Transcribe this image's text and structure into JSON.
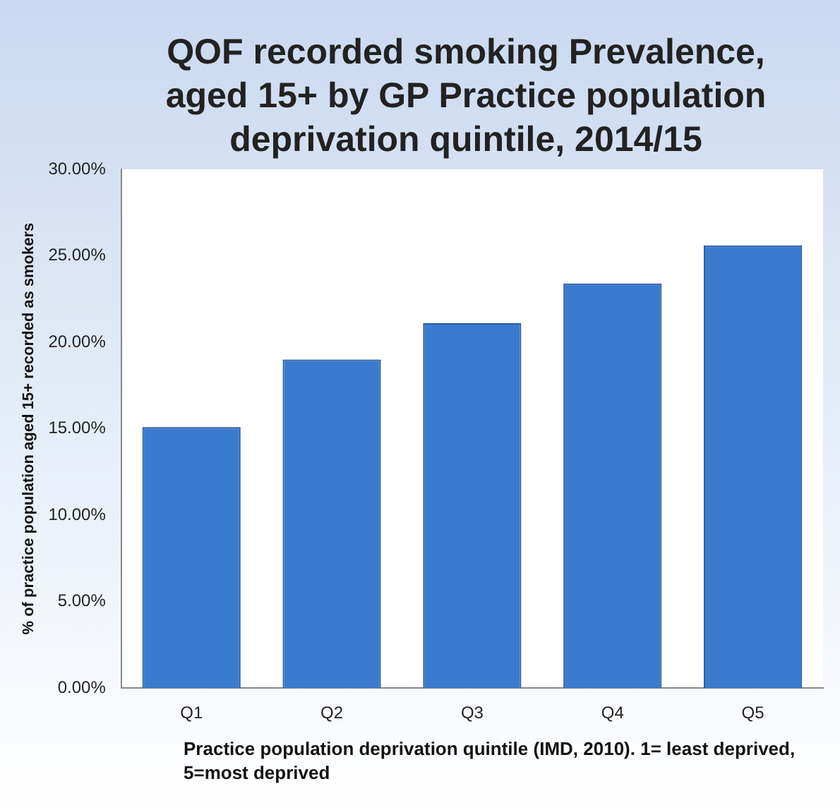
{
  "chart_data": {
    "type": "bar",
    "title": "QOF recorded smoking Prevalence, aged 15+ by GP Practice population deprivation quintile, 2014/15",
    "xlabel": "Practice population deprivation quintile (IMD, 2010). 1= least deprived, 5=most deprived",
    "ylabel": "% of practice population aged 15+ recorded as smokers",
    "categories": [
      "Q1",
      "Q2",
      "Q3",
      "Q4",
      "Q5"
    ],
    "values": [
      15.1,
      19.0,
      21.1,
      23.4,
      25.6
    ],
    "color": "#3b7bcf",
    "ylim": [
      0,
      30
    ],
    "yticks": [
      {
        "value": 0,
        "label": "0.00%"
      },
      {
        "value": 5,
        "label": "5.00%"
      },
      {
        "value": 10,
        "label": "10.00%"
      },
      {
        "value": 15,
        "label": "15.00%"
      },
      {
        "value": 20,
        "label": "20.00%"
      },
      {
        "value": 25,
        "label": "25.00%"
      },
      {
        "value": 30,
        "label": "30.00%"
      }
    ],
    "grid": false,
    "legend": false
  }
}
